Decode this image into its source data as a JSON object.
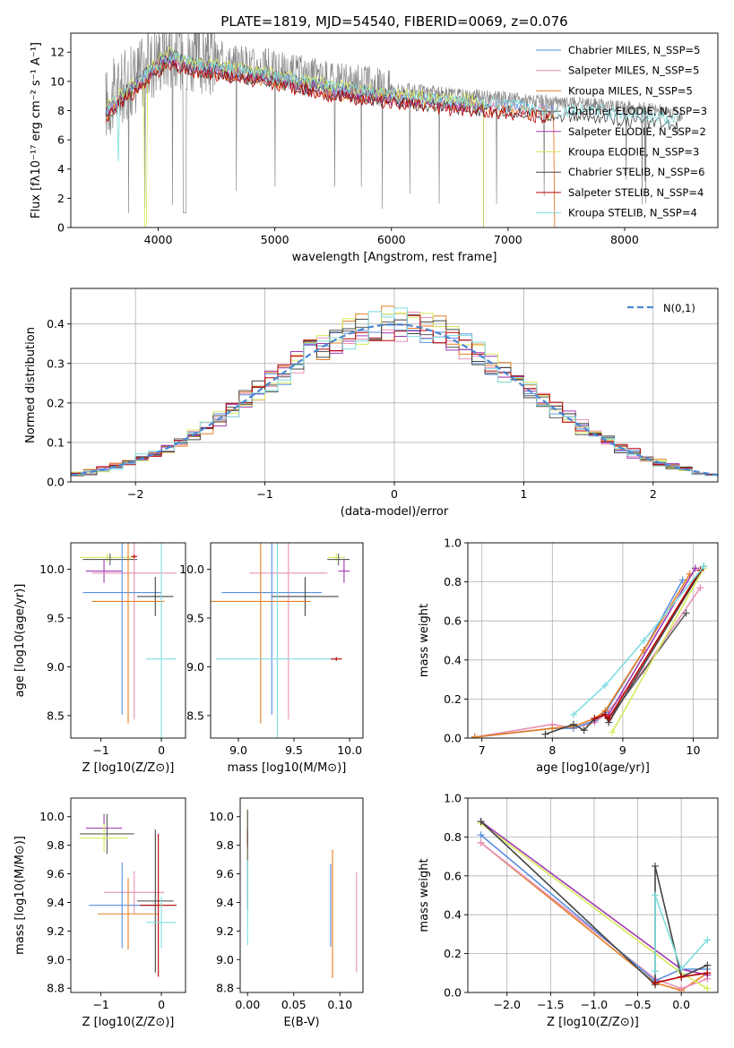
{
  "colors": {
    "chabrier_miles": "#5a8fe0",
    "salpeter_miles": "#e890b8",
    "kroupa_miles": "#e67e22",
    "chabrier_elodie": "#5c5c5c",
    "salpeter_elodie": "#a03ab0",
    "kroupa_elodie": "#d8ea5a",
    "chabrier_stelib": "#444444",
    "salpeter_stelib": "#b80000",
    "kroupa_stelib": "#7fdde0",
    "data": "#888888",
    "grid": "#b0b0b0"
  },
  "chart_data": [
    {
      "id": "spectrum",
      "type": "line",
      "title": "PLATE=1819, MJD=54540, FIBERID=0069, z=0.076",
      "xlabel": "wavelength [Angstrom, rest frame]",
      "ylabel": "Flux [fλ10⁻¹⁷ erg cm⁻² s⁻¹ A⁻¹]",
      "xlim": [
        3250,
        8800
      ],
      "ylim": [
        0,
        13.3
      ],
      "xticks": [
        "4000",
        "5000",
        "6000",
        "7000",
        "8000"
      ],
      "yticks": [
        "0",
        "2",
        "4",
        "6",
        "8",
        "10",
        "12"
      ],
      "legend_position": "upper-right",
      "legend": [
        "Chabrier MILES, N_SSP=5",
        "Salpeter MILES, N_SSP=5",
        "Kroupa MILES, N_SSP=5",
        "Chabrier ELODIE, N_SSP=3",
        "Salpeter ELODIE, N_SSP=2",
        "Kroupa ELODIE, N_SSP=3",
        "Chabrier STELIB, N_SSP=6",
        "Salpeter STELIB, N_SSP=4",
        "Kroupa STELIB, N_SSP=4"
      ],
      "continuum_x": [
        3550,
        3700,
        3850,
        4000,
        4100,
        4300,
        4600,
        5000,
        5500,
        6000,
        6500,
        7000,
        7400,
        7800,
        8200,
        8500
      ],
      "continuum_y": [
        8.5,
        9.6,
        10.6,
        11.7,
        12.2,
        11.6,
        11.3,
        10.8,
        10.0,
        9.5,
        9.1,
        8.8,
        8.5,
        8.4,
        8.1,
        7.7
      ]
    },
    {
      "id": "residuals",
      "type": "histogram",
      "xlabel": "(data-model)/error",
      "ylabel": "Normed distribution",
      "xlim": [
        -2.5,
        2.5
      ],
      "ylim": [
        0,
        0.49
      ],
      "xticks": [
        "−2",
        "−1",
        "0",
        "1",
        "2"
      ],
      "yticks": [
        "0.0",
        "0.1",
        "0.2",
        "0.3",
        "0.4"
      ],
      "grid": true,
      "legend_position": "upper-right",
      "legend": [
        "N(0,1)"
      ],
      "bin_width": 0.1
    },
    {
      "id": "age_vs_z",
      "type": "errorbar",
      "xlabel": "Z [log10(Z/Z⊙)]",
      "ylabel": "age [log10(age/yr)]",
      "xlim": [
        -1.5,
        0.4
      ],
      "ylim": [
        8.27,
        10.27
      ],
      "xticks": [
        "−1",
        "0"
      ],
      "yticks": [
        "8.5",
        "9.0",
        "9.5",
        "10.0"
      ],
      "points": [
        {
          "series": "kroupa_elodie",
          "x": -0.9,
          "xerr": 0.45,
          "y": 10.12,
          "yerr": 0.04
        },
        {
          "series": "chabrier_elodie",
          "x": -0.85,
          "xerr": 0.45,
          "y": 10.1,
          "yerr": 0.06
        },
        {
          "series": "salpeter_elodie",
          "x": -0.95,
          "xerr": 0.3,
          "y": 9.98,
          "yerr": 0.12
        },
        {
          "series": "salpeter_miles",
          "x": -0.45,
          "xerr": 0.7,
          "y": 9.96,
          "yerr": 1.5
        },
        {
          "series": "chabrier_miles",
          "x": -0.65,
          "xerr": 0.65,
          "y": 9.76,
          "yerr": 1.25
        },
        {
          "series": "chabrier_stelib",
          "x": -0.1,
          "xerr": 0.3,
          "y": 9.72,
          "yerr": 0.2
        },
        {
          "series": "kroupa_miles",
          "x": -0.55,
          "xerr": 0.6,
          "y": 9.67,
          "yerr": 1.25
        },
        {
          "series": "kroupa_stelib",
          "x": 0.0,
          "xerr": 0.25,
          "y": 9.08,
          "yerr": 1.45
        },
        {
          "series": "salpeter_stelib",
          "x": -0.45,
          "xerr": 0.05,
          "y": 10.13,
          "yerr": 0.02
        }
      ]
    },
    {
      "id": "age_vs_mass",
      "type": "errorbar",
      "xlabel": "mass [log10(M/M⊙)]",
      "ylabel": "",
      "xlim": [
        8.75,
        10.12
      ],
      "ylim": [
        8.27,
        10.27
      ],
      "xticks": [
        "9.0",
        "9.5",
        "10.0"
      ],
      "yticks": [
        "8.5",
        "9.0",
        "9.5",
        "10.0"
      ],
      "points": [
        {
          "series": "kroupa_elodie",
          "x": 9.88,
          "xerr": 0.08,
          "y": 10.12,
          "yerr": 0.04
        },
        {
          "series": "chabrier_elodie",
          "x": 9.9,
          "xerr": 0.1,
          "y": 10.1,
          "yerr": 0.06
        },
        {
          "series": "salpeter_elodie",
          "x": 9.95,
          "xerr": 0.05,
          "y": 9.98,
          "yerr": 0.12
        },
        {
          "series": "salpeter_miles",
          "x": 9.45,
          "xerr": 0.35,
          "y": 9.96,
          "yerr": 1.5
        },
        {
          "series": "chabrier_miles",
          "x": 9.3,
          "xerr": 0.45,
          "y": 9.76,
          "yerr": 1.25
        },
        {
          "series": "chabrier_stelib",
          "x": 9.6,
          "xerr": 0.3,
          "y": 9.72,
          "yerr": 0.2
        },
        {
          "series": "kroupa_miles",
          "x": 9.2,
          "xerr": 0.45,
          "y": 9.67,
          "yerr": 1.25
        },
        {
          "series": "kroupa_stelib",
          "x": 9.35,
          "xerr": 0.55,
          "y": 9.08,
          "yerr": 1.45
        },
        {
          "series": "salpeter_stelib",
          "x": 9.88,
          "xerr": 0.05,
          "y": 9.08,
          "yerr": 0.02
        }
      ]
    },
    {
      "id": "mass_weight_vs_age",
      "type": "line",
      "xlabel": "age [log10(age/yr)]",
      "ylabel": "mass weight",
      "xlim": [
        6.8,
        10.35
      ],
      "ylim": [
        0,
        1.0
      ],
      "xticks": [
        "7",
        "8",
        "9",
        "10"
      ],
      "yticks": [
        "0.0",
        "0.2",
        "0.4",
        "0.6",
        "0.8",
        "1.0"
      ],
      "grid": true,
      "series": [
        {
          "key": "salpeter_miles",
          "x": [
            6.9,
            8.0,
            8.3,
            8.6,
            8.75,
            9.3,
            10.1
          ],
          "y": [
            0.005,
            0.07,
            0.05,
            0.08,
            0.12,
            0.35,
            0.77
          ]
        },
        {
          "key": "chabrier_miles",
          "x": [
            6.9,
            8.0,
            8.3,
            8.6,
            8.75,
            9.3,
            9.85
          ],
          "y": [
            0.005,
            0.05,
            0.05,
            0.09,
            0.13,
            0.45,
            0.81
          ]
        },
        {
          "key": "kroupa_miles",
          "x": [
            6.9,
            8.0,
            8.3,
            8.6,
            8.75,
            9.3,
            9.95
          ],
          "y": [
            0.005,
            0.05,
            0.06,
            0.1,
            0.14,
            0.45,
            0.84
          ]
        },
        {
          "key": "chabrier_elodie",
          "x": [
            8.8,
            9.9
          ],
          "y": [
            0.1,
            0.64
          ]
        },
        {
          "key": "salpeter_elodie",
          "x": [
            8.8,
            10.03
          ],
          "y": [
            0.12,
            0.87
          ]
        },
        {
          "key": "kroupa_elodie",
          "x": [
            8.85,
            10.15
          ],
          "y": [
            0.03,
            0.87
          ]
        },
        {
          "key": "chabrier_stelib",
          "x": [
            7.9,
            8.3,
            8.45,
            8.6,
            8.75,
            8.8,
            10.15
          ],
          "y": [
            0.02,
            0.07,
            0.04,
            0.1,
            0.12,
            0.08,
            0.88
          ]
        },
        {
          "key": "salpeter_stelib",
          "x": [
            8.6,
            8.75,
            8.8,
            10.1
          ],
          "y": [
            0.1,
            0.12,
            0.1,
            0.86
          ]
        },
        {
          "key": "kroupa_stelib",
          "x": [
            8.3,
            8.75,
            9.3,
            10.15
          ],
          "y": [
            0.12,
            0.27,
            0.5,
            0.88
          ]
        }
      ]
    },
    {
      "id": "mass_vs_z",
      "type": "errorbar",
      "xlabel": "Z [log10(Z/Z⊙)]",
      "ylabel": "mass [log10(M/M⊙)]",
      "xlim": [
        -1.5,
        0.4
      ],
      "ylim": [
        8.77,
        10.13
      ],
      "xticks": [
        "−1",
        "0"
      ],
      "yticks": [
        "8.8",
        "9.0",
        "9.2",
        "9.4",
        "9.6",
        "9.8",
        "10.0"
      ],
      "points": [
        {
          "series": "salpeter_elodie",
          "x": -0.95,
          "xerr": 0.3,
          "y": 9.92,
          "yerr": 0.1
        },
        {
          "series": "chabrier_elodie",
          "x": -0.9,
          "xerr": 0.45,
          "y": 9.88,
          "yerr": 0.14
        },
        {
          "series": "kroupa_elodie",
          "x": -0.95,
          "xerr": 0.4,
          "y": 9.85,
          "yerr": 0.1
        },
        {
          "series": "salpeter_miles",
          "x": -0.45,
          "xerr": 0.5,
          "y": 9.47,
          "yerr": 0.15
        },
        {
          "series": "chabrier_miles",
          "x": -0.65,
          "xerr": 0.55,
          "y": 9.38,
          "yerr": 0.3
        },
        {
          "series": "chabrier_stelib",
          "x": -0.1,
          "xerr": 0.3,
          "y": 9.41,
          "yerr": 0.5
        },
        {
          "series": "kroupa_miles",
          "x": -0.55,
          "xerr": 0.5,
          "y": 9.32,
          "yerr": 0.25
        },
        {
          "series": "salpeter_stelib",
          "x": -0.05,
          "xerr": 0.3,
          "y": 9.38,
          "yerr": 0.5
        },
        {
          "series": "kroupa_stelib",
          "x": 0.0,
          "xerr": 0.25,
          "y": 9.26,
          "yerr": 0.18
        }
      ]
    },
    {
      "id": "mass_vs_ebv",
      "type": "errorbar",
      "xlabel": "E(B-V)",
      "ylabel": "",
      "xlim": [
        -0.008,
        0.125
      ],
      "ylim": [
        8.77,
        10.13
      ],
      "xticks": [
        "0.00",
        "0.05",
        "0.10"
      ],
      "yticks": [
        "8.8",
        "9.0",
        "9.2",
        "9.4",
        "9.6",
        "9.8",
        "10.0"
      ],
      "points": [
        {
          "series": "salpeter_elodie",
          "x": 0.0,
          "xerr": 0.0005,
          "y": 9.92,
          "yerr": 0.1
        },
        {
          "series": "kroupa_elodie",
          "x": 0.0,
          "xerr": 0.0005,
          "y": 9.85,
          "yerr": 0.2
        },
        {
          "series": "salpeter_stelib",
          "x": 0.0,
          "xerr": 0.0005,
          "y": 9.85,
          "yerr": 0.06
        },
        {
          "series": "chabrier_elodie",
          "x": 0.0,
          "xerr": 0.0005,
          "y": 9.7,
          "yerr": 0.35
        },
        {
          "series": "kroupa_stelib",
          "x": 0.0,
          "xerr": 0.0005,
          "y": 9.4,
          "yerr": 0.3
        },
        {
          "series": "chabrier_miles",
          "x": 0.09,
          "xerr": 0.0005,
          "y": 9.38,
          "yerr": 0.29
        },
        {
          "series": "kroupa_miles",
          "x": 0.092,
          "xerr": 0.0005,
          "y": 9.32,
          "yerr": 0.45
        },
        {
          "series": "salpeter_miles",
          "x": 0.118,
          "xerr": 0.0005,
          "y": 9.26,
          "yerr": 0.35
        }
      ]
    },
    {
      "id": "mass_weight_vs_z",
      "type": "line",
      "xlabel": "Z [log10(Z/Z⊙)]",
      "ylabel": "mass weight",
      "xlim": [
        -2.45,
        0.42
      ],
      "ylim": [
        0,
        1.0
      ],
      "xticks": [
        "−2.0",
        "−1.5",
        "−1.0",
        "−0.5",
        "0.0"
      ],
      "yticks": [
        "0.0",
        "0.2",
        "0.4",
        "0.6",
        "0.8",
        "1.0"
      ],
      "grid": true,
      "series": [
        {
          "key": "kroupa_miles",
          "x": [
            -2.3,
            -0.3,
            0.0,
            0.3
          ],
          "y": [
            0.77,
            0.05,
            0.01,
            0.1
          ]
        },
        {
          "key": "salpeter_miles",
          "x": [
            -2.3,
            -0.3,
            0.0,
            0.3
          ],
          "y": [
            0.77,
            0.07,
            0.02,
            0.07
          ]
        },
        {
          "key": "chabrier_miles",
          "x": [
            -2.3,
            -0.3,
            0.0,
            0.3
          ],
          "y": [
            0.81,
            0.06,
            0.12,
            0.12
          ]
        },
        {
          "key": "kroupa_elodie",
          "x": [
            -2.3,
            0.0,
            0.3
          ],
          "y": [
            0.87,
            0.1,
            0.02
          ]
        },
        {
          "key": "salpeter_elodie",
          "x": [
            -2.3,
            0.0,
            0.3
          ],
          "y": [
            0.88,
            0.12,
            0.09
          ]
        },
        {
          "key": "chabrier_stelib",
          "x": [
            -2.3,
            -0.3,
            -0.3,
            0.0,
            0.3
          ],
          "y": [
            0.88,
            0.04,
            0.65,
            0.08,
            0.14
          ]
        },
        {
          "key": "salpeter_stelib",
          "x": [
            -0.3,
            0.0,
            0.3
          ],
          "y": [
            0.05,
            0.08,
            0.1
          ]
        },
        {
          "key": "kroupa_stelib",
          "x": [
            -0.3,
            -0.3,
            0.0,
            0.3
          ],
          "y": [
            0.11,
            0.5,
            0.12,
            0.27
          ]
        }
      ]
    }
  ]
}
